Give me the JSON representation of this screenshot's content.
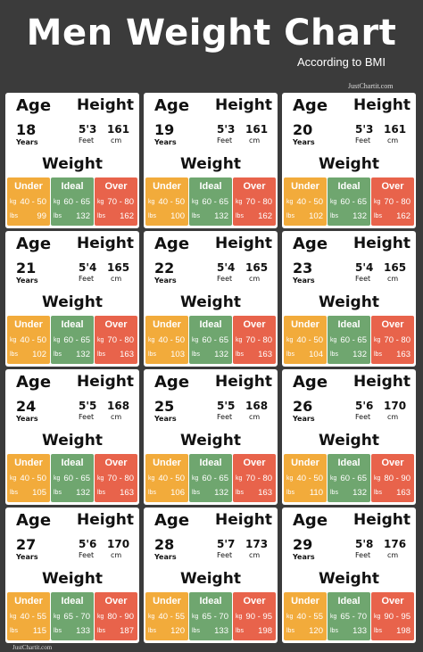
{
  "header": {
    "title": "Men Weight Chart",
    "subtitle": "According to BMI",
    "site": "JustChartit.com"
  },
  "labels": {
    "age": "Age",
    "height": "Height",
    "years": "Years",
    "feet": "Feet",
    "cm": "cm",
    "weight": "Weight",
    "kg": "kg",
    "lbs": "lbs",
    "categories": [
      "Under",
      "Ideal",
      "Over"
    ]
  },
  "cards": [
    {
      "age": 18,
      "height_ft": "5'3",
      "height_cm": 161,
      "weight": [
        {
          "kg": "40 - 50",
          "lbs": 99
        },
        {
          "kg": "60 - 65",
          "lbs": 132
        },
        {
          "kg": "70 - 80",
          "lbs": 162
        }
      ]
    },
    {
      "age": 19,
      "height_ft": "5'3",
      "height_cm": 161,
      "weight": [
        {
          "kg": "40 - 50",
          "lbs": 100
        },
        {
          "kg": "60 - 65",
          "lbs": 132
        },
        {
          "kg": "70 - 80",
          "lbs": 162
        }
      ]
    },
    {
      "age": 20,
      "height_ft": "5'3",
      "height_cm": 161,
      "weight": [
        {
          "kg": "40 - 50",
          "lbs": 102
        },
        {
          "kg": "60 - 65",
          "lbs": 132
        },
        {
          "kg": "70 - 80",
          "lbs": 162
        }
      ]
    },
    {
      "age": 21,
      "height_ft": "5'4",
      "height_cm": 165,
      "weight": [
        {
          "kg": "40 - 50",
          "lbs": 102
        },
        {
          "kg": "60 - 65",
          "lbs": 132
        },
        {
          "kg": "70 - 80",
          "lbs": 163
        }
      ]
    },
    {
      "age": 22,
      "height_ft": "5'4",
      "height_cm": 165,
      "weight": [
        {
          "kg": "40 - 50",
          "lbs": 103
        },
        {
          "kg": "60 - 65",
          "lbs": 132
        },
        {
          "kg": "70 - 80",
          "lbs": 163
        }
      ]
    },
    {
      "age": 23,
      "height_ft": "5'4",
      "height_cm": 165,
      "weight": [
        {
          "kg": "40 - 50",
          "lbs": 104
        },
        {
          "kg": "60 - 65",
          "lbs": 132
        },
        {
          "kg": "70 - 80",
          "lbs": 163
        }
      ]
    },
    {
      "age": 24,
      "height_ft": "5'5",
      "height_cm": 168,
      "weight": [
        {
          "kg": "40 - 50",
          "lbs": 105
        },
        {
          "kg": "60 - 65",
          "lbs": 132
        },
        {
          "kg": "70 - 80",
          "lbs": 163
        }
      ]
    },
    {
      "age": 25,
      "height_ft": "5'5",
      "height_cm": 168,
      "weight": [
        {
          "kg": "40 - 50",
          "lbs": 106
        },
        {
          "kg": "60 - 65",
          "lbs": 132
        },
        {
          "kg": "70 - 80",
          "lbs": 163
        }
      ]
    },
    {
      "age": 26,
      "height_ft": "5'6",
      "height_cm": 170,
      "weight": [
        {
          "kg": "40 - 50",
          "lbs": 110
        },
        {
          "kg": "60 - 65",
          "lbs": 132
        },
        {
          "kg": "80 - 90",
          "lbs": 163
        }
      ]
    },
    {
      "age": 27,
      "height_ft": "5'6",
      "height_cm": 170,
      "weight": [
        {
          "kg": "40 - 55",
          "lbs": 115
        },
        {
          "kg": "65 - 70",
          "lbs": 133
        },
        {
          "kg": "80 - 90",
          "lbs": 187
        }
      ]
    },
    {
      "age": 28,
      "height_ft": "5'7",
      "height_cm": 173,
      "weight": [
        {
          "kg": "40 - 55",
          "lbs": 120
        },
        {
          "kg": "65 - 70",
          "lbs": 133
        },
        {
          "kg": "90 - 95",
          "lbs": 198
        }
      ]
    },
    {
      "age": 29,
      "height_ft": "5'8",
      "height_cm": 176,
      "weight": [
        {
          "kg": "40 - 55",
          "lbs": 120
        },
        {
          "kg": "65 - 70",
          "lbs": 133
        },
        {
          "kg": "90 - 95",
          "lbs": 198
        }
      ]
    }
  ]
}
